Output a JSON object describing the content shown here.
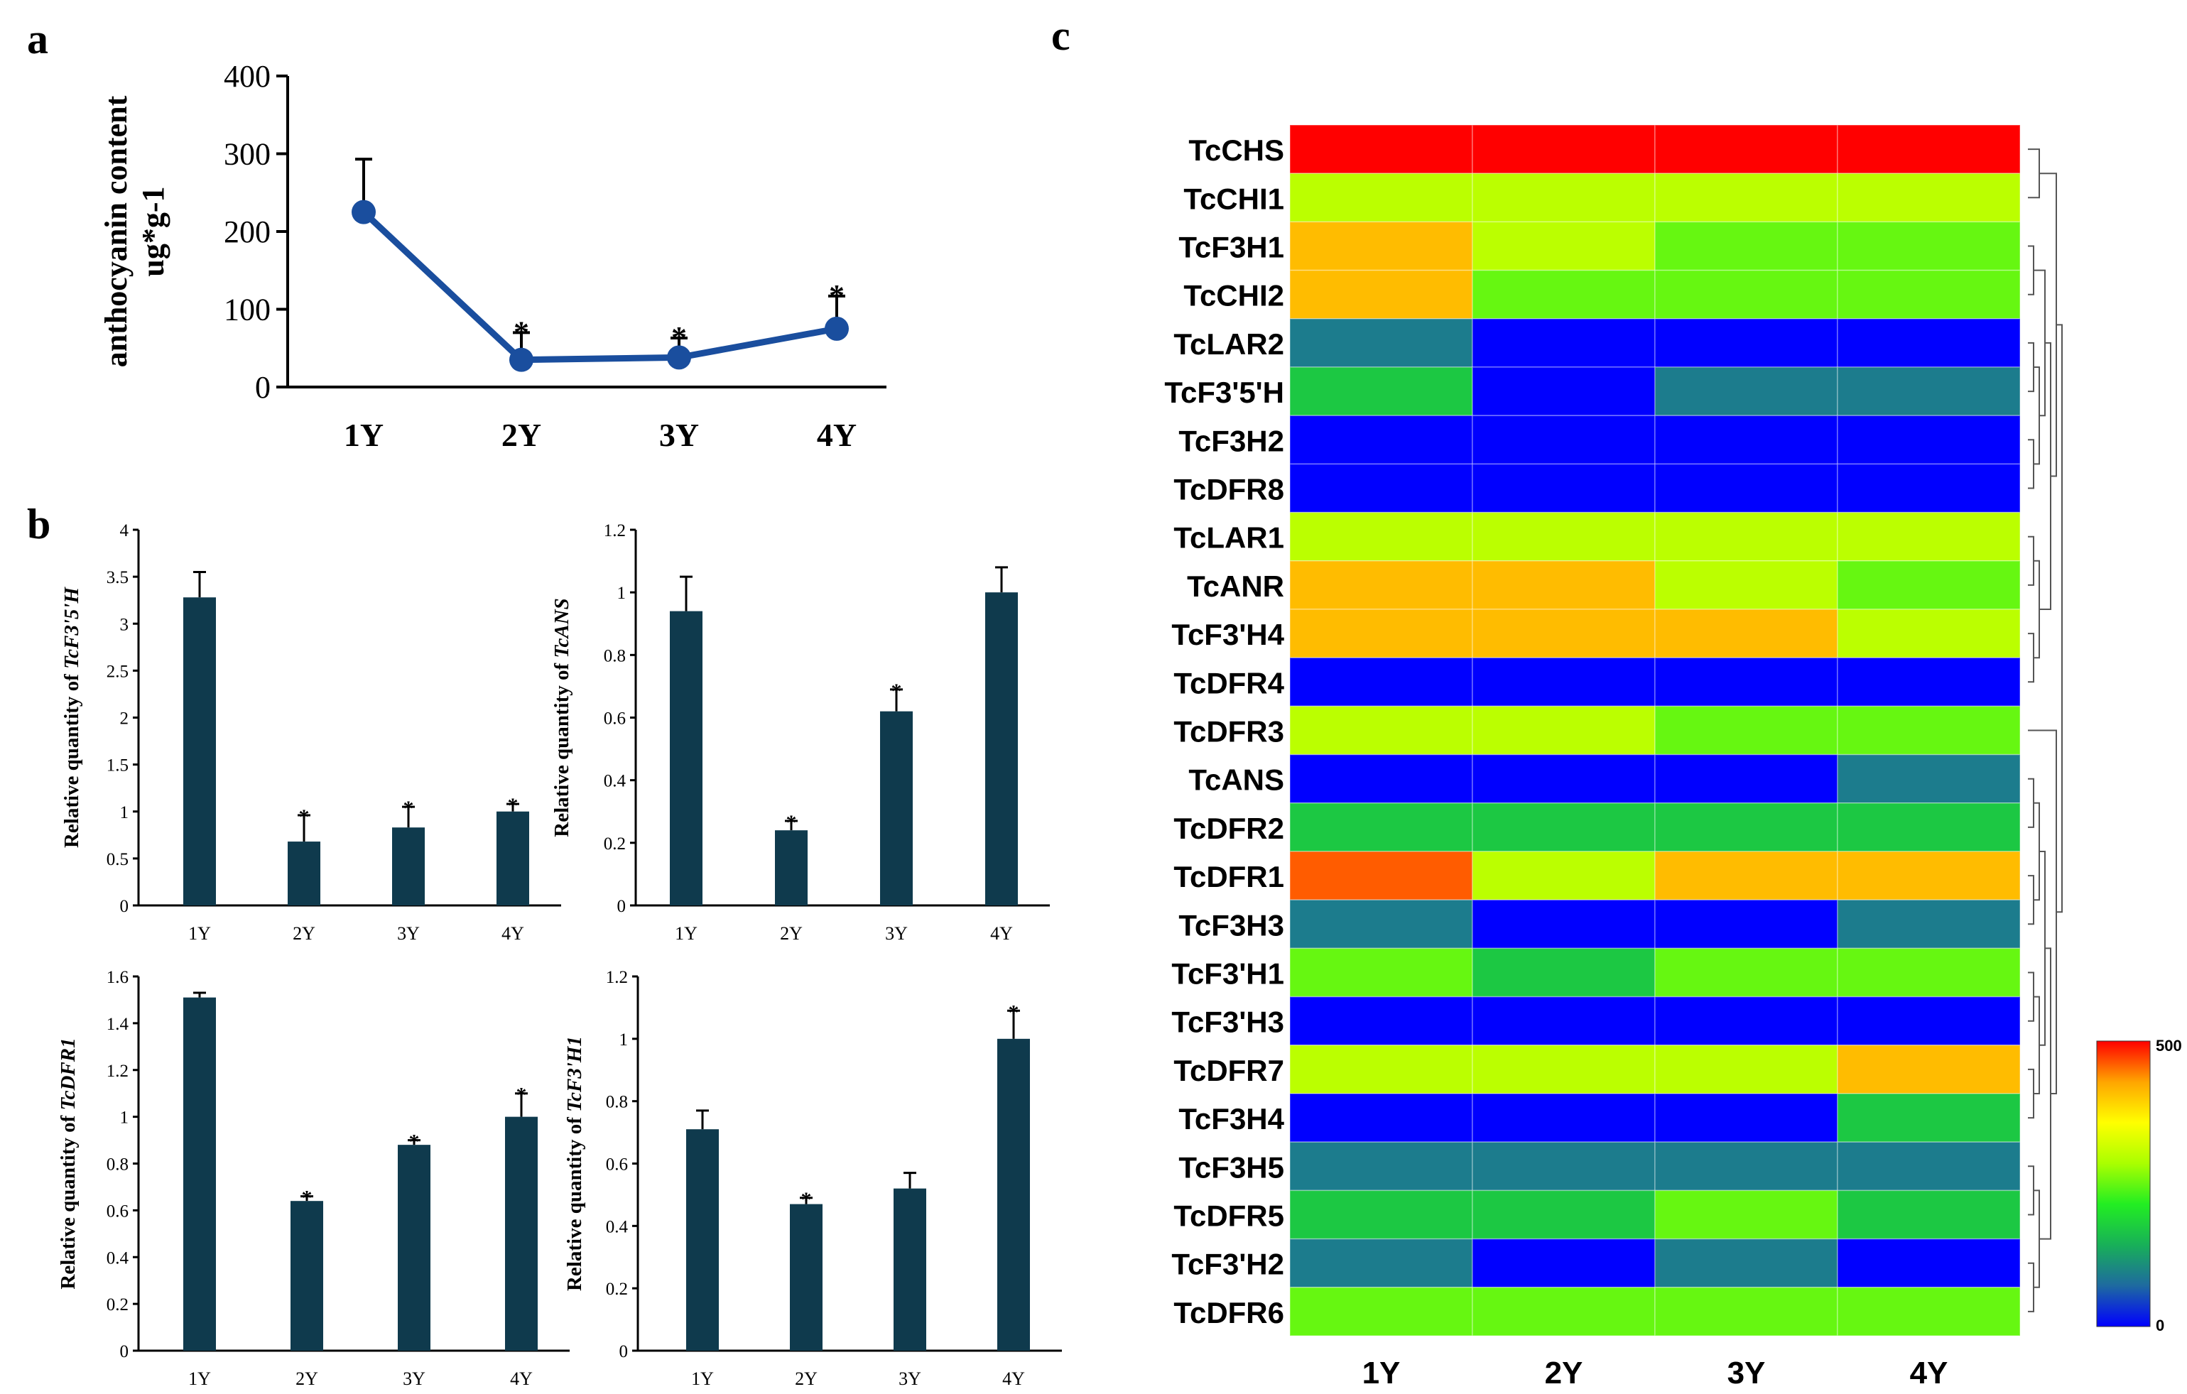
{
  "panel_labels": {
    "a": "a",
    "b": "b",
    "c": "c"
  },
  "colors": {
    "line": "#1a4e9e",
    "bar": "#0f3a4d",
    "axis": "#000000"
  },
  "chart_data": [
    {
      "id": "a",
      "type": "line",
      "categories": [
        "1Y",
        "2Y",
        "3Y",
        "4Y"
      ],
      "values": [
        225,
        35,
        38,
        75
      ],
      "errors": [
        68,
        35,
        25,
        42
      ],
      "significant": [
        false,
        true,
        true,
        true
      ],
      "ylabel_line1": "anthocyanin content",
      "ylabel_line2": "ug*g-1",
      "ylim": [
        0,
        400
      ],
      "yticks": [
        "0",
        "100",
        "200",
        "300",
        "400"
      ],
      "marker": "*"
    },
    {
      "id": "b1",
      "type": "bar",
      "categories": [
        "1Y",
        "2Y",
        "3Y",
        "4Y"
      ],
      "values": [
        3.28,
        0.68,
        0.83,
        1.0
      ],
      "errors": [
        0.27,
        0.28,
        0.22,
        0.08
      ],
      "significant": [
        false,
        true,
        true,
        true
      ],
      "ylabel_prefix": "Relative quantity of ",
      "ylabel_gene": "TcF3'5'H",
      "ylim": [
        0,
        4
      ],
      "yticks": [
        "0",
        "0.5",
        "1",
        "1.5",
        "2",
        "2.5",
        "3",
        "3.5",
        "4"
      ],
      "marker": "*"
    },
    {
      "id": "b2",
      "type": "bar",
      "categories": [
        "1Y",
        "2Y",
        "3Y",
        "4Y"
      ],
      "values": [
        0.94,
        0.24,
        0.62,
        1.0
      ],
      "errors": [
        0.11,
        0.03,
        0.07,
        0.08
      ],
      "significant": [
        false,
        true,
        true,
        false
      ],
      "ylabel_prefix": "Relative quantity of ",
      "ylabel_gene": "TcANS",
      "ylim": [
        0,
        1.2
      ],
      "yticks": [
        "0",
        "0.2",
        "0.4",
        "0.6",
        "0.8",
        "1",
        "1.2"
      ],
      "marker": "*"
    },
    {
      "id": "b3",
      "type": "bar",
      "categories": [
        "1Y",
        "2Y",
        "3Y",
        "4Y"
      ],
      "values": [
        1.51,
        0.64,
        0.88,
        1.0
      ],
      "errors": [
        0.02,
        0.02,
        0.02,
        0.1
      ],
      "significant": [
        false,
        true,
        true,
        true
      ],
      "ylabel_prefix": "Relative quantity of ",
      "ylabel_gene": "TcDFR1",
      "ylim": [
        0,
        1.6
      ],
      "yticks": [
        "0",
        "0.2",
        "0.4",
        "0.6",
        "0.8",
        "1",
        "1.2",
        "1.4",
        "1.6"
      ],
      "marker": "*"
    },
    {
      "id": "b4",
      "type": "bar",
      "categories": [
        "1Y",
        "2Y",
        "3Y",
        "4Y"
      ],
      "values": [
        0.71,
        0.47,
        0.52,
        1.0
      ],
      "errors": [
        0.06,
        0.02,
        0.05,
        0.09
      ],
      "significant": [
        false,
        true,
        false,
        true
      ],
      "ylabel_prefix": "Relative quantity of ",
      "ylabel_gene": "TcF3'H1",
      "ylim": [
        0,
        1.2
      ],
      "yticks": [
        "0",
        "0.2",
        "0.4",
        "0.6",
        "0.8",
        "1",
        "1.2"
      ],
      "marker": "*"
    },
    {
      "id": "c",
      "type": "heatmap",
      "columns": [
        "1Y",
        "2Y",
        "3Y",
        "4Y"
      ],
      "rows": [
        "TcCHS",
        "TcCHI1",
        "TcF3H1",
        "TcCHI2",
        "TcLAR2",
        "TcF3'5'H",
        "TcF3H2",
        "TcDFR8",
        "TcLAR1",
        "TcANR",
        "TcF3'H4",
        "TcDFR4",
        "TcDFR3",
        "TcANS",
        "TcDFR2",
        "TcDFR1",
        "TcF3H3",
        "TcF3'H1",
        "TcF3'H3",
        "TcDFR7",
        "TcF3H4",
        "TcF3H5",
        "TcDFR5",
        "TcF3'H2",
        "TcDFR6"
      ],
      "values": [
        [
          500,
          500,
          500,
          500
        ],
        [
          300,
          300,
          300,
          300
        ],
        [
          410,
          300,
          250,
          250
        ],
        [
          410,
          250,
          250,
          250
        ],
        [
          90,
          0,
          0,
          0
        ],
        [
          170,
          0,
          90,
          90
        ],
        [
          0,
          0,
          0,
          0
        ],
        [
          0,
          0,
          0,
          0
        ],
        [
          300,
          300,
          300,
          300
        ],
        [
          410,
          410,
          300,
          250
        ],
        [
          410,
          410,
          410,
          300
        ],
        [
          0,
          0,
          0,
          0
        ],
        [
          300,
          300,
          250,
          250
        ],
        [
          0,
          0,
          0,
          90
        ],
        [
          170,
          170,
          170,
          170
        ],
        [
          460,
          300,
          410,
          410
        ],
        [
          90,
          0,
          0,
          90
        ],
        [
          250,
          170,
          250,
          250
        ],
        [
          0,
          0,
          0,
          0
        ],
        [
          300,
          300,
          300,
          410
        ],
        [
          0,
          0,
          0,
          170
        ],
        [
          90,
          90,
          90,
          90
        ],
        [
          170,
          170,
          250,
          170
        ],
        [
          90,
          0,
          90,
          0
        ],
        [
          250,
          250,
          250,
          250
        ]
      ],
      "colorbar": {
        "min": 0,
        "max": 500,
        "min_label": "0",
        "max_label": "500"
      },
      "colormap": [
        "#0000ff",
        "#1e6aa0",
        "#18b058",
        "#22ee22",
        "#aaff00",
        "#ffff00",
        "#ffa500",
        "#ff0000"
      ]
    }
  ]
}
